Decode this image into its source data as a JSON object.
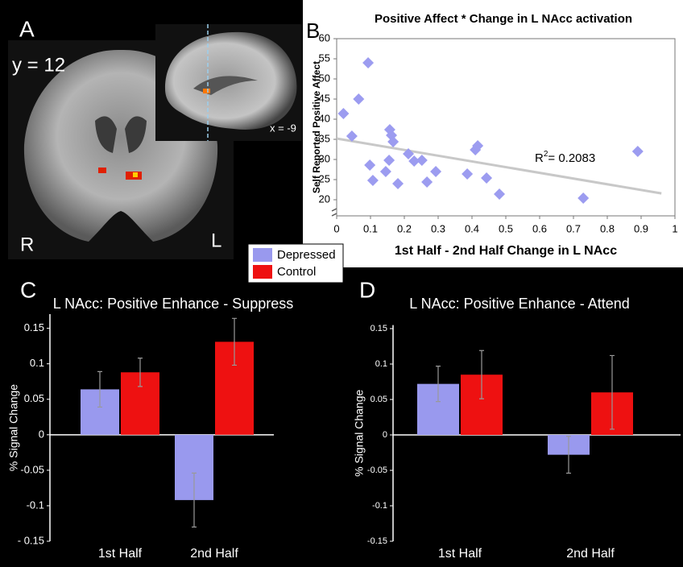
{
  "panel_labels": [
    "A",
    "B",
    "C",
    "D"
  ],
  "brain_image": {
    "coronal_slice": "y = 12",
    "sagittal_slice": "x = -9",
    "right": "R",
    "left": "L"
  },
  "chart_data": [
    {
      "type": "scatter",
      "title": "Positive Affect * Change in L NAcc activation",
      "x_label": "1st Half - 2nd Half Change in L NAcc",
      "y_label": "Self Reported Positive Affect",
      "x": [
        0.02,
        0.045,
        0.065,
        0.093,
        0.098,
        0.107,
        0.145,
        0.155,
        0.157,
        0.162,
        0.167,
        0.181,
        0.212,
        0.229,
        0.252,
        0.267,
        0.293,
        0.386,
        0.41,
        0.417,
        0.443,
        0.481,
        0.729,
        0.89
      ],
      "values": [
        41.4,
        35.8,
        45,
        54,
        28.6,
        24.8,
        27,
        29.8,
        37.4,
        36,
        34.4,
        24,
        31.4,
        29.6,
        29.8,
        24.4,
        27,
        26.4,
        32.4,
        33.4,
        25.4,
        21.4,
        20.4,
        32
      ],
      "color": "#9c9cf0",
      "trendline": {
        "intercept": 35.2,
        "slope": -14.2,
        "color": "#c8c8c8"
      },
      "annotation": {
        "base": "R",
        "sup": "2",
        "rest": "= 0.2083"
      },
      "xlim": [
        0,
        1
      ],
      "xticks": [
        0,
        0.1,
        0.2,
        0.3,
        0.4,
        0.5,
        0.6,
        0.7,
        0.8,
        0.9,
        1
      ],
      "ylim": [
        16,
        60
      ],
      "yticks": [
        20,
        25,
        30,
        35,
        40,
        45,
        50,
        55,
        60
      ]
    },
    {
      "type": "bar",
      "title": "L NAcc: Positive Enhance - Suppress",
      "y_label": "% Signal Change",
      "categories": [
        "1st Half",
        "2nd Half"
      ],
      "series": [
        {
          "name": "Depressed",
          "color": "#9999ee",
          "values": [
            0.064,
            -0.092
          ],
          "errors": [
            0.025,
            0.038
          ]
        },
        {
          "name": "Control",
          "color": "#ee1111",
          "values": [
            0.088,
            0.131
          ],
          "errors": [
            0.02,
            0.033
          ]
        }
      ],
      "ylim": [
        -0.15,
        0.17
      ],
      "yticks": [
        {
          "value": -0.15,
          "label": "- 0.15"
        },
        -0.1,
        -0.05,
        0,
        0.05,
        0.1,
        0.15
      ]
    },
    {
      "type": "bar",
      "title": "L NAcc: Positive Enhance - Attend",
      "y_label": "% Signal Change",
      "categories": [
        "1st Half",
        "2nd Half"
      ],
      "series": [
        {
          "name": "Depressed",
          "color": "#9999ee",
          "values": [
            0.072,
            -0.028
          ],
          "errors": [
            0.025,
            0.026
          ]
        },
        {
          "name": "Control",
          "color": "#ee1111",
          "values": [
            0.085,
            0.06
          ],
          "errors": [
            0.034,
            0.052
          ]
        }
      ],
      "ylim": [
        -0.15,
        0.155
      ],
      "yticks": [
        -0.15,
        -0.1,
        -0.05,
        0,
        0.05,
        0.1,
        0.15
      ]
    }
  ]
}
